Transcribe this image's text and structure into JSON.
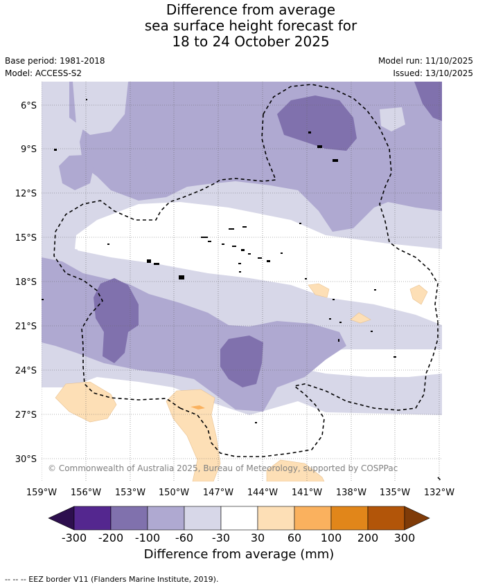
{
  "title": {
    "line1": "Difference from average",
    "line2": "sea surface height forecast for",
    "line3": "18 to 24 October 2025"
  },
  "meta": {
    "base_period": "Base period: 1981-2018",
    "model": "Model: ACCESS-S2",
    "model_run": "Model run: 11/10/2025",
    "issued": "Issued: 13/10/2025"
  },
  "map": {
    "copyright": "© Commonwealth of Australia 2025, Bureau of Meteorology, supported by COSPPac",
    "lat_labels": [
      "6°S",
      "9°S",
      "12°S",
      "15°S",
      "18°S",
      "21°S",
      "24°S",
      "27°S",
      "30°S"
    ],
    "lon_labels": [
      "159°W",
      "156°W",
      "153°W",
      "150°W",
      "147°W",
      "144°W",
      "141°W",
      "138°W",
      "135°W",
      "132°W"
    ],
    "colors": {
      "dark_purple": "#2d0f4e",
      "purple_300": "#54278f",
      "purple_200": "#8071ad",
      "purple_100": "#afa9d1",
      "purple_60": "#d7d7e8",
      "neutral": "#ffffff",
      "orange_60": "#fddfb6",
      "orange_100": "#fab15e",
      "orange_200": "#e1861a",
      "orange_300": "#b25509",
      "dark_brown": "#7f3b08"
    }
  },
  "colorbar": {
    "ticks": [
      "-300",
      "-200",
      "-100",
      "-60",
      "-30",
      "30",
      "60",
      "100",
      "200",
      "300"
    ],
    "label": "Difference from average (mm)"
  },
  "legend_note": "-- -- -- EEZ border V11 (Flanders Marine Institute, 2019)."
}
